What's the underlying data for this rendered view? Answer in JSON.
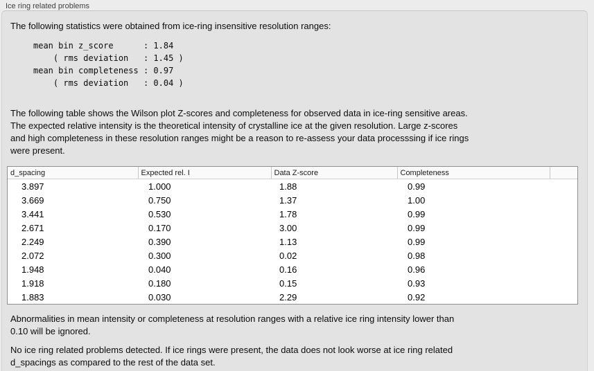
{
  "panel": {
    "title": "Ice ring related problems"
  },
  "intro": {
    "text": "The following statistics were obtained from ice-ring insensitive resolution ranges:"
  },
  "stats": {
    "block": "mean bin z_score      : 1.84\n    ( rms deviation   : 1.45 )\nmean bin completeness : 0.97\n    ( rms deviation   : 0.04 )"
  },
  "description": {
    "text": "The following table shows the Wilson plot Z-scores and completeness for observed data in ice-ring sensitive areas.\nThe expected relative intensity is the theoretical intensity of crystalline ice at the given resolution. Large z-scores\nand high completeness in these resolution ranges might be a reason to re-assess your data processsing if ice rings\nwere present."
  },
  "table": {
    "headers": [
      "d_spacing",
      "Expected rel. I",
      "Data Z-score",
      "Completeness",
      ""
    ],
    "rows": [
      [
        "3.897",
        "1.000",
        "1.88",
        "0.99"
      ],
      [
        "3.669",
        "0.750",
        "1.37",
        "1.00"
      ],
      [
        "3.441",
        "0.530",
        "1.78",
        "0.99"
      ],
      [
        "2.671",
        "0.170",
        "3.00",
        "0.99"
      ],
      [
        "2.249",
        "0.390",
        "1.13",
        "0.99"
      ],
      [
        "2.072",
        "0.300",
        "0.02",
        "0.98"
      ],
      [
        "1.948",
        "0.040",
        "0.16",
        "0.96"
      ],
      [
        "1.918",
        "0.180",
        "0.15",
        "0.93"
      ],
      [
        "1.883",
        "0.030",
        "2.29",
        "0.92"
      ]
    ]
  },
  "notes": {
    "ignore": "Abnormalities in mean intensity or completeness at resolution ranges with a relative ice ring intensity lower than\n0.10 will be ignored.",
    "conclusion": "No ice ring related problems detected. If ice rings were present, the data does not look worse at ice ring related\nd_spacings as compared to the rest of the data set."
  },
  "colors": {
    "page_bg": "#ececec",
    "box_bg": "#e3e3e3",
    "table_bg": "#ffffff",
    "table_border": "#8f8f8f"
  }
}
